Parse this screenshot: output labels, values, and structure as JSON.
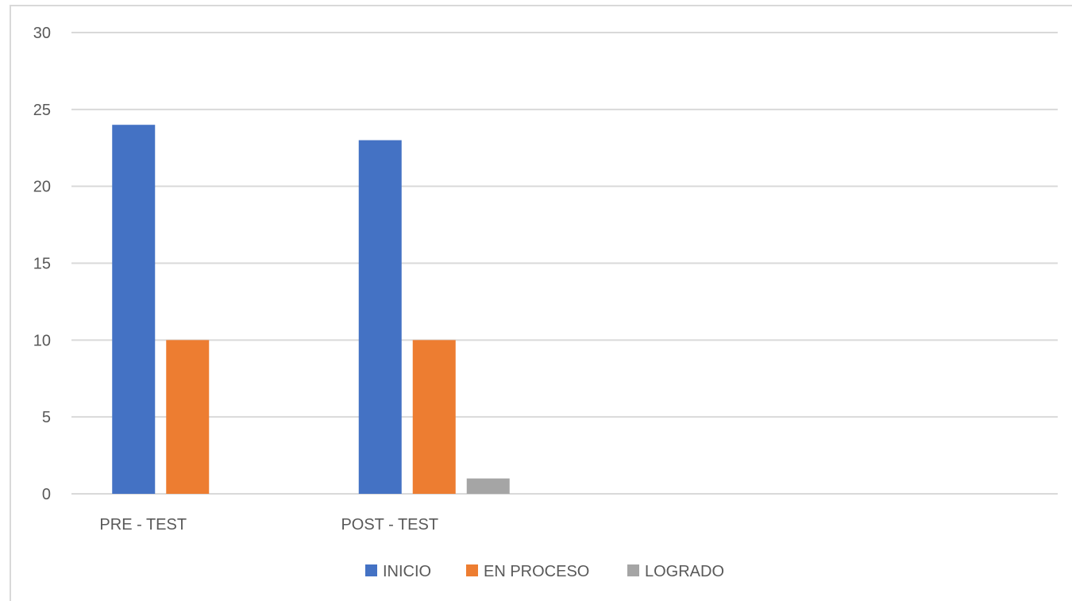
{
  "chart_data": {
    "type": "bar",
    "title": "",
    "xlabel": "",
    "ylabel": "",
    "categories": [
      "PRE - TEST",
      "POST - TEST",
      "",
      ""
    ],
    "series": [
      {
        "name": "INICIO",
        "color": "#4472c4",
        "values": [
          24,
          23,
          null,
          null
        ]
      },
      {
        "name": "EN PROCESO",
        "color": "#ed7d31",
        "values": [
          10,
          10,
          null,
          null
        ]
      },
      {
        "name": "LOGRADO",
        "color": "#a5a5a5",
        "values": [
          0,
          1,
          null,
          null
        ]
      }
    ],
    "ylim": [
      0,
      30
    ],
    "yticks": [
      0,
      5,
      10,
      15,
      20,
      25,
      30
    ],
    "grid": true,
    "legend_position": "bottom",
    "colors": {
      "gridline": "#d9d9d9",
      "axis_text": "#595959",
      "frame": "#d9d9d9"
    }
  }
}
